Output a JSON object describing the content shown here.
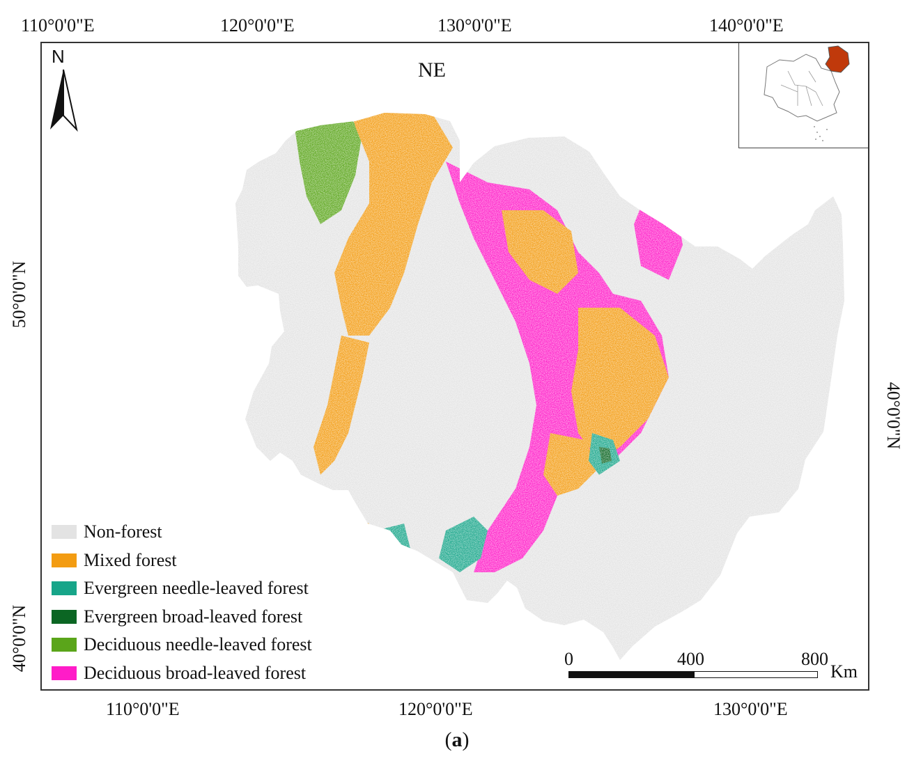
{
  "map": {
    "region_label": "NE",
    "north_label": "N",
    "top_ticks": [
      "110°0'0\"E",
      "120°0'0\"E",
      "130°0'0\"E",
      "140°0'0\"E"
    ],
    "bottom_ticks": [
      "110°0'0\"E",
      "120°0'0\"E",
      "130°0'0\"E"
    ],
    "left_ticks": [
      "50°0'0\"N",
      "40°0'0\"N"
    ],
    "right_ticks": [
      "40°0'0\"N"
    ],
    "legend": [
      {
        "label": "Non-forest",
        "color": "#e3e3e3"
      },
      {
        "label": "Mixed forest",
        "color": "#f39c12"
      },
      {
        "label": "Evergreen needle-leaved forest",
        "color": "#17a589"
      },
      {
        "label": "Evergreen broad-leaved forest",
        "color": "#0b6623"
      },
      {
        "label": "Deciduous needle-leaved forest",
        "color": "#5aa51a"
      },
      {
        "label": "Deciduous broad-leaved forest",
        "color": "#ff1cc8"
      }
    ],
    "scale": {
      "ticks": [
        "0",
        "400",
        "800"
      ],
      "unit": "Km"
    },
    "inset_highlight_color": "#c0390b"
  },
  "caption": {
    "open": "(",
    "letter": "a",
    "close": ")"
  }
}
